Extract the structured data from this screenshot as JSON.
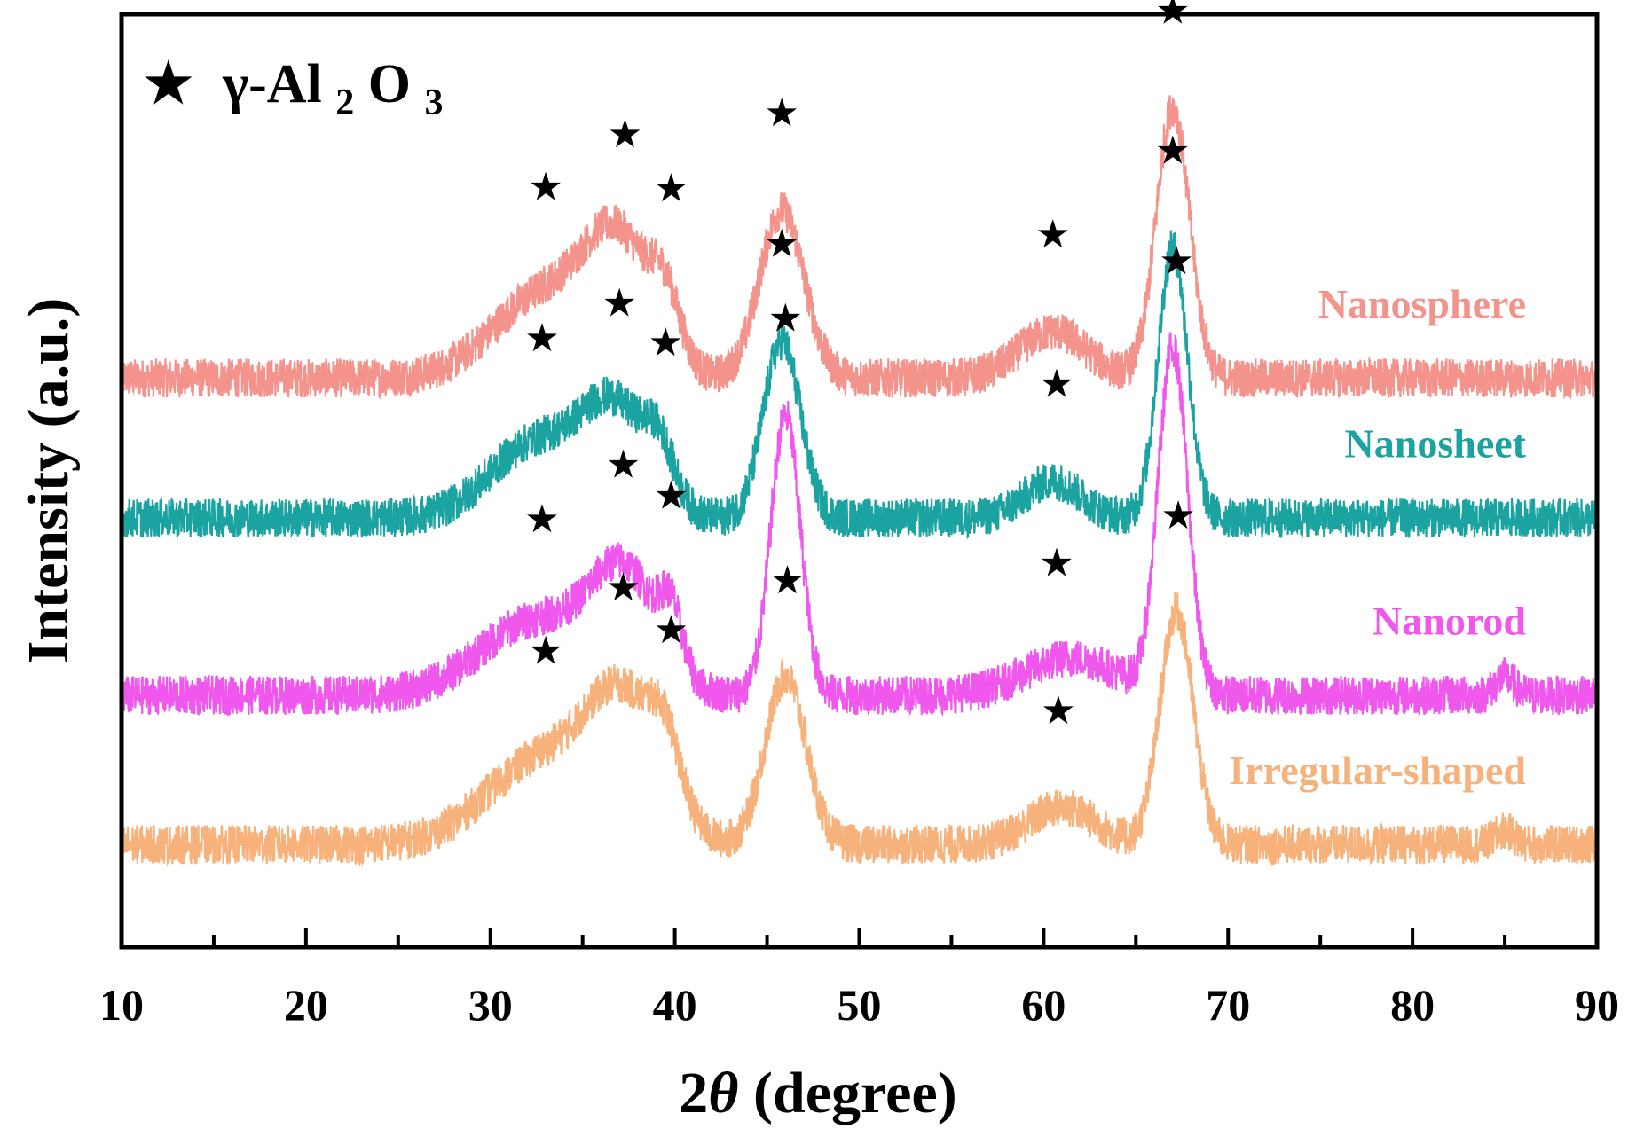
{
  "chart_data": {
    "type": "line",
    "xlabel_prefix": "2",
    "xlabel_symbol": "θ",
    "xlabel_suffix": " (degree)",
    "ylabel": "Intensity (a.u.)",
    "xlim": [
      10,
      90
    ],
    "xticks": [
      "10",
      "20",
      "30",
      "40",
      "50",
      "60",
      "70",
      "80",
      "90"
    ],
    "yticks_shown": false,
    "legend": {
      "marker": "★",
      "greek": "γ-Al",
      "sub1": "2",
      "mid": "O",
      "sub2": "3"
    },
    "marker_symbol": "★",
    "series": [
      {
        "name": "Nanosphere",
        "color": "#F4938C",
        "baseline": 5.6,
        "peaks": [
          [
            33,
            0.9,
            2.8
          ],
          [
            37,
            1.3,
            1.8
          ],
          [
            39.5,
            0.6,
            0.8
          ],
          [
            45.8,
            1.8,
            1.2
          ],
          [
            60.5,
            0.5,
            1.8
          ],
          [
            67,
            2.9,
            0.9
          ]
        ],
        "markers": [
          33,
          37.3,
          39.8,
          45.8,
          60.5,
          67
        ]
      },
      {
        "name": "Nanosheet",
        "color": "#1AA3A0",
        "baseline": 4.1,
        "peaks": [
          [
            32.5,
            0.8,
            2.5
          ],
          [
            36.8,
            1.1,
            1.8
          ],
          [
            39.2,
            0.5,
            0.8
          ],
          [
            45.8,
            1.9,
            1.0
          ],
          [
            60.5,
            0.4,
            1.5
          ],
          [
            67,
            2.9,
            0.8
          ]
        ],
        "markers": [
          32.8,
          37,
          39.5,
          45.8,
          60.7,
          67
        ]
      },
      {
        "name": "Nanorod",
        "color": "#F057EC",
        "baseline": 2.2,
        "peaks": [
          [
            32.5,
            0.8,
            3.0
          ],
          [
            37.3,
            1.2,
            1.8
          ],
          [
            39.8,
            0.6,
            0.6
          ],
          [
            46,
            3.0,
            0.8
          ],
          [
            61.5,
            0.4,
            2.5
          ],
          [
            67,
            3.7,
            0.8
          ],
          [
            85,
            0.2,
            0.5
          ]
        ],
        "markers": [
          32.8,
          37.2,
          39.8,
          46,
          60.7,
          67.2
        ]
      },
      {
        "name": "Irregular-shaped",
        "color": "#F7B27C",
        "baseline": 0.6,
        "peaks": [
          [
            32.8,
            0.9,
            3.0
          ],
          [
            37.3,
            1.4,
            2.0
          ],
          [
            39.5,
            0.6,
            0.8
          ],
          [
            46,
            1.8,
            1.1
          ],
          [
            61,
            0.4,
            1.8
          ],
          [
            67.2,
            2.5,
            0.9
          ],
          [
            85,
            0.15,
            0.5
          ]
        ],
        "markers": [
          33,
          37.2,
          39.8,
          46.1,
          60.8,
          67.3
        ]
      }
    ]
  }
}
